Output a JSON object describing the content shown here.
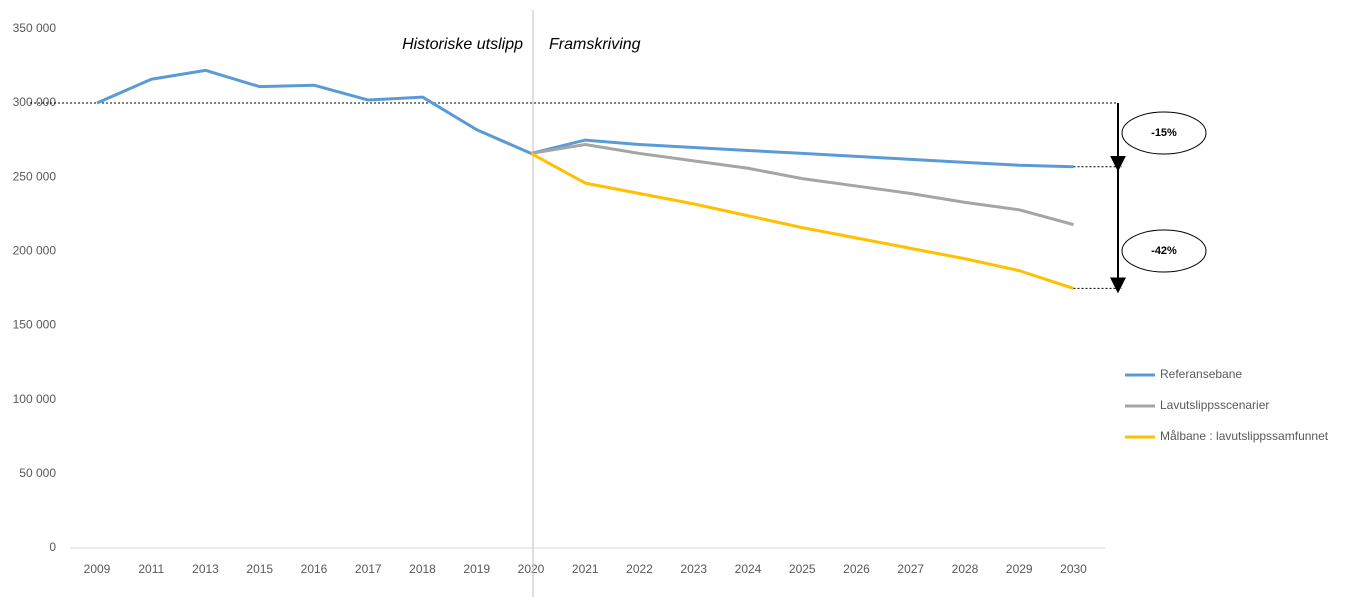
{
  "chart_data": {
    "type": "line",
    "categories": [
      "2009",
      "2011",
      "2013",
      "2015",
      "2016",
      "2017",
      "2018",
      "2019",
      "2020",
      "2021",
      "2022",
      "2023",
      "2024",
      "2025",
      "2026",
      "2027",
      "2028",
      "2029",
      "2030"
    ],
    "series": [
      {
        "name": "Referansebane",
        "color": "#5b9bd5",
        "values": [
          300000,
          316000,
          322000,
          311000,
          312000,
          302000,
          304000,
          282000,
          266000,
          275000,
          272000,
          270000,
          268000,
          266000,
          264000,
          262000,
          260000,
          258000,
          257000
        ]
      },
      {
        "name": "Lavutslippsscenarier",
        "color": "#a5a5a5",
        "values": [
          null,
          null,
          null,
          null,
          null,
          null,
          null,
          null,
          266000,
          272000,
          266000,
          261000,
          256000,
          249000,
          244000,
          239000,
          233000,
          228000,
          218000
        ]
      },
      {
        "name": "Målbane : lavutslippssamfunnet",
        "color": "#ffc000",
        "values": [
          null,
          null,
          null,
          null,
          null,
          null,
          null,
          null,
          266000,
          246000,
          239000,
          232000,
          224000,
          216000,
          209000,
          202000,
          195000,
          187000,
          175000
        ]
      }
    ],
    "ylim": [
      0,
      350000
    ],
    "yticks": [
      {
        "value": 0,
        "label": "0"
      },
      {
        "value": 50000,
        "label": "50 000"
      },
      {
        "value": 100000,
        "label": "100 000"
      },
      {
        "value": 150000,
        "label": "150 000"
      },
      {
        "value": 200000,
        "label": "200 000"
      },
      {
        "value": 250000,
        "label": "250 000"
      },
      {
        "value": 300000,
        "label": "300 000"
      },
      {
        "value": 350000,
        "label": "350 000"
      }
    ],
    "annotations": [
      "Historiske utslipp",
      "Framskriving",
      "-15%",
      "-42%"
    ],
    "legend": "right"
  }
}
